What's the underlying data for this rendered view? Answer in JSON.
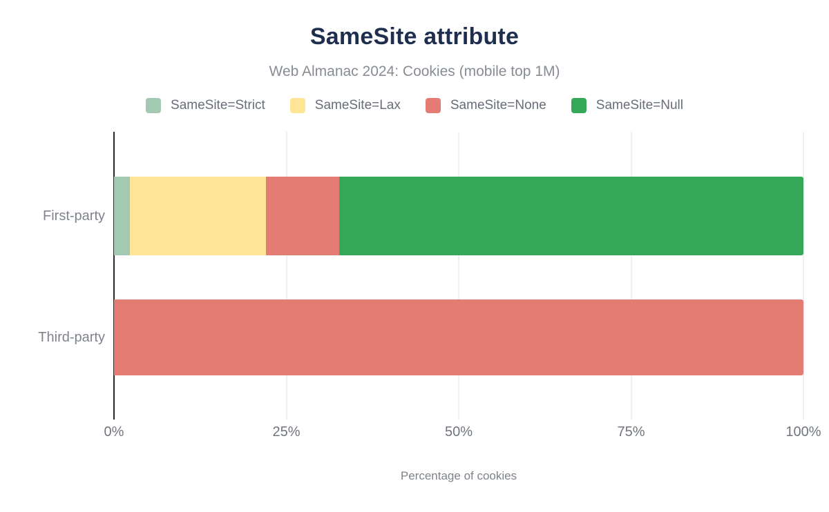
{
  "title": "SameSite attribute",
  "subtitle": "Web Almanac 2024: Cookies (mobile top 1M)",
  "legend": [
    {
      "label": "SameSite=Strict",
      "color": "#a3c9b2"
    },
    {
      "label": "SameSite=Lax",
      "color": "#fee596"
    },
    {
      "label": "SameSite=None",
      "color": "#e57c73"
    },
    {
      "label": "SameSite=Null",
      "color": "#35a758"
    }
  ],
  "colors": {
    "title": "#1e2e4e",
    "subtitle": "#878c93",
    "axis_text": "#70757d",
    "axis_line": "#2b2b2b",
    "gridline": "#efefef"
  },
  "chart_data": {
    "type": "bar",
    "orientation": "horizontal",
    "stacked": true,
    "title": "SameSite attribute",
    "subtitle": "Web Almanac 2024: Cookies (mobile top 1M)",
    "categories": [
      "First-party",
      "Third-party"
    ],
    "series": [
      {
        "name": "SameSite=Strict",
        "color": "#a3c9b2",
        "values": [
          2.3,
          0
        ]
      },
      {
        "name": "SameSite=Lax",
        "color": "#fee596",
        "values": [
          19.7,
          0
        ]
      },
      {
        "name": "SameSite=None",
        "color": "#e57c73",
        "values": [
          10.7,
          100
        ]
      },
      {
        "name": "SameSite=Null",
        "color": "#35a758",
        "values": [
          67.3,
          0
        ]
      }
    ],
    "xlabel": "Percentage of cookies",
    "ylabel": "",
    "xlim": [
      0,
      100
    ],
    "x_ticks": [
      "0%",
      "25%",
      "50%",
      "75%",
      "100%"
    ],
    "grid": true,
    "legend_position": "top"
  }
}
